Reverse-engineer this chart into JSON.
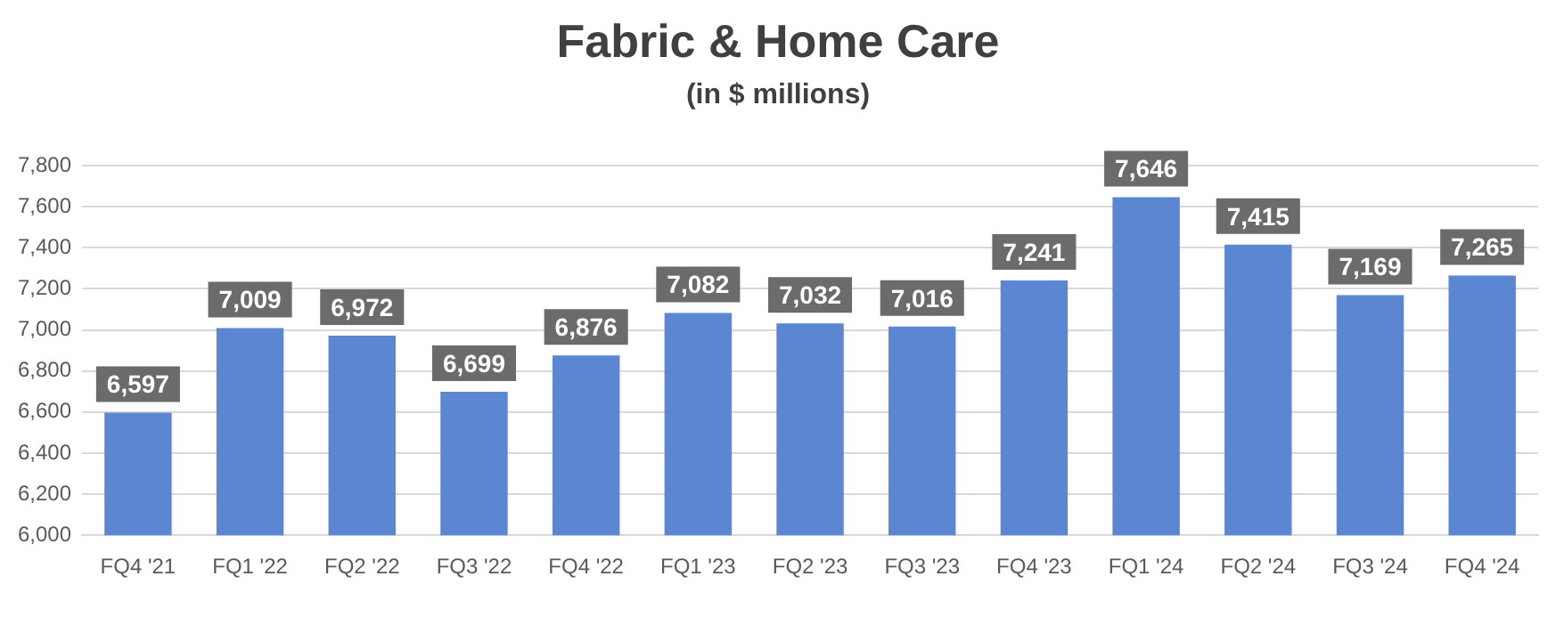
{
  "chart_data": {
    "type": "bar",
    "title": "Fabric & Home Care",
    "subtitle": "(in $ millions)",
    "categories": [
      "FQ4 '21",
      "FQ1 '22",
      "FQ2 '22",
      "FQ3 '22",
      "FQ4 '22",
      "FQ1 '23",
      "FQ2 '23",
      "FQ3 '23",
      "FQ4 '23",
      "FQ1 '24",
      "FQ2 '24",
      "FQ3 '24",
      "FQ4 '24"
    ],
    "values": [
      6597,
      7009,
      6972,
      6699,
      6876,
      7082,
      7032,
      7016,
      7241,
      7646,
      7415,
      7169,
      7265
    ],
    "value_labels": [
      "6,597",
      "7,009",
      "6,972",
      "6,699",
      "6,876",
      "7,082",
      "7,032",
      "7,016",
      "7,241",
      "7,646",
      "7,415",
      "7,169",
      "7,265"
    ],
    "color": "#5a86d2",
    "ylim": [
      6000,
      7800
    ],
    "yticks": [
      {
        "value": 6000,
        "label": "6,000"
      },
      {
        "value": 6200,
        "label": "6,200"
      },
      {
        "value": 6400,
        "label": "6,400"
      },
      {
        "value": 6600,
        "label": "6,600"
      },
      {
        "value": 6800,
        "label": "6,800"
      },
      {
        "value": 7000,
        "label": "7,000"
      },
      {
        "value": 7200,
        "label": "7,200"
      },
      {
        "value": 7400,
        "label": "7,400"
      },
      {
        "value": 7600,
        "label": "7,600"
      },
      {
        "value": 7800,
        "label": "7,800"
      }
    ],
    "grid": "y",
    "legend": false
  }
}
